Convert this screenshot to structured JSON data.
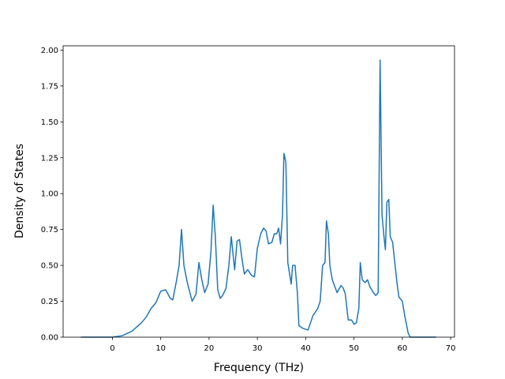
{
  "chart_data": {
    "type": "line",
    "xlabel": "Frequency (THz)",
    "ylabel": "Density of States",
    "xlim": [
      -10.2,
      70.8
    ],
    "ylim": [
      0,
      2.03
    ],
    "xticks": [
      0,
      10,
      20,
      30,
      40,
      50,
      60,
      70
    ],
    "yticks": [
      {
        "value": 0,
        "label": "0.00"
      },
      {
        "value": 0.25,
        "label": "0.25"
      },
      {
        "value": 0.5,
        "label": "0.50"
      },
      {
        "value": 0.75,
        "label": "0.75"
      },
      {
        "value": 1,
        "label": "1.00"
      },
      {
        "value": 1.25,
        "label": "1.25"
      },
      {
        "value": 1.5,
        "label": "1.50"
      },
      {
        "value": 1.75,
        "label": "1.75"
      },
      {
        "value": 2,
        "label": "2.00"
      }
    ],
    "grid": false,
    "series": [
      {
        "color": "#1f77b4",
        "x": [
          -6.5,
          0,
          2,
          4,
          6,
          7,
          8,
          9,
          10,
          11,
          12,
          12.5,
          13.3,
          13.8,
          14.3,
          14.8,
          15.5,
          16.5,
          17.3,
          17.9,
          18.5,
          19.1,
          19.8,
          20.4,
          20.85,
          21.3,
          21.8,
          22.3,
          22.8,
          23.5,
          24.1,
          24.6,
          25.3,
          25.8,
          26.3,
          26.8,
          27.3,
          28,
          28.8,
          29.4,
          30,
          30.7,
          31.3,
          31.8,
          32.3,
          33,
          33.5,
          34,
          34.4,
          34.8,
          35.2,
          35.5,
          35.9,
          36.3,
          37,
          37.3,
          37.8,
          38.3,
          38.6,
          39.5,
          40.5,
          41,
          41.5,
          42.5,
          43,
          43.5,
          44,
          44.3,
          44.7,
          45,
          45.5,
          46.5,
          47.3,
          47.8,
          48.2,
          48.8,
          49.5,
          50,
          50.5,
          51,
          51.3,
          51.7,
          52.3,
          52.8,
          53.3,
          54,
          54.5,
          55,
          55.4,
          55.8,
          56.2,
          56.5,
          56.8,
          57.2,
          57.5,
          58,
          58.5,
          59,
          59.3,
          60,
          60.5,
          61.2,
          61.6,
          67
        ],
        "values": [
          0,
          0,
          0.01,
          0.04,
          0.1,
          0.14,
          0.2,
          0.24,
          0.32,
          0.33,
          0.27,
          0.26,
          0.4,
          0.5,
          0.75,
          0.5,
          0.38,
          0.25,
          0.3,
          0.52,
          0.4,
          0.31,
          0.37,
          0.6,
          0.92,
          0.7,
          0.33,
          0.27,
          0.29,
          0.34,
          0.5,
          0.7,
          0.47,
          0.67,
          0.68,
          0.55,
          0.44,
          0.47,
          0.43,
          0.42,
          0.62,
          0.72,
          0.76,
          0.74,
          0.65,
          0.66,
          0.72,
          0.72,
          0.76,
          0.65,
          0.85,
          1.28,
          1.22,
          0.52,
          0.37,
          0.5,
          0.5,
          0.3,
          0.08,
          0.06,
          0.05,
          0.1,
          0.15,
          0.2,
          0.25,
          0.5,
          0.52,
          0.81,
          0.72,
          0.5,
          0.4,
          0.31,
          0.36,
          0.34,
          0.3,
          0.12,
          0.12,
          0.09,
          0.1,
          0.2,
          0.52,
          0.4,
          0.38,
          0.4,
          0.35,
          0.31,
          0.29,
          0.31,
          1.93,
          0.85,
          0.7,
          0.61,
          0.94,
          0.96,
          0.7,
          0.66,
          0.5,
          0.35,
          0.28,
          0.25,
          0.15,
          0.03,
          0,
          0
        ]
      }
    ]
  }
}
